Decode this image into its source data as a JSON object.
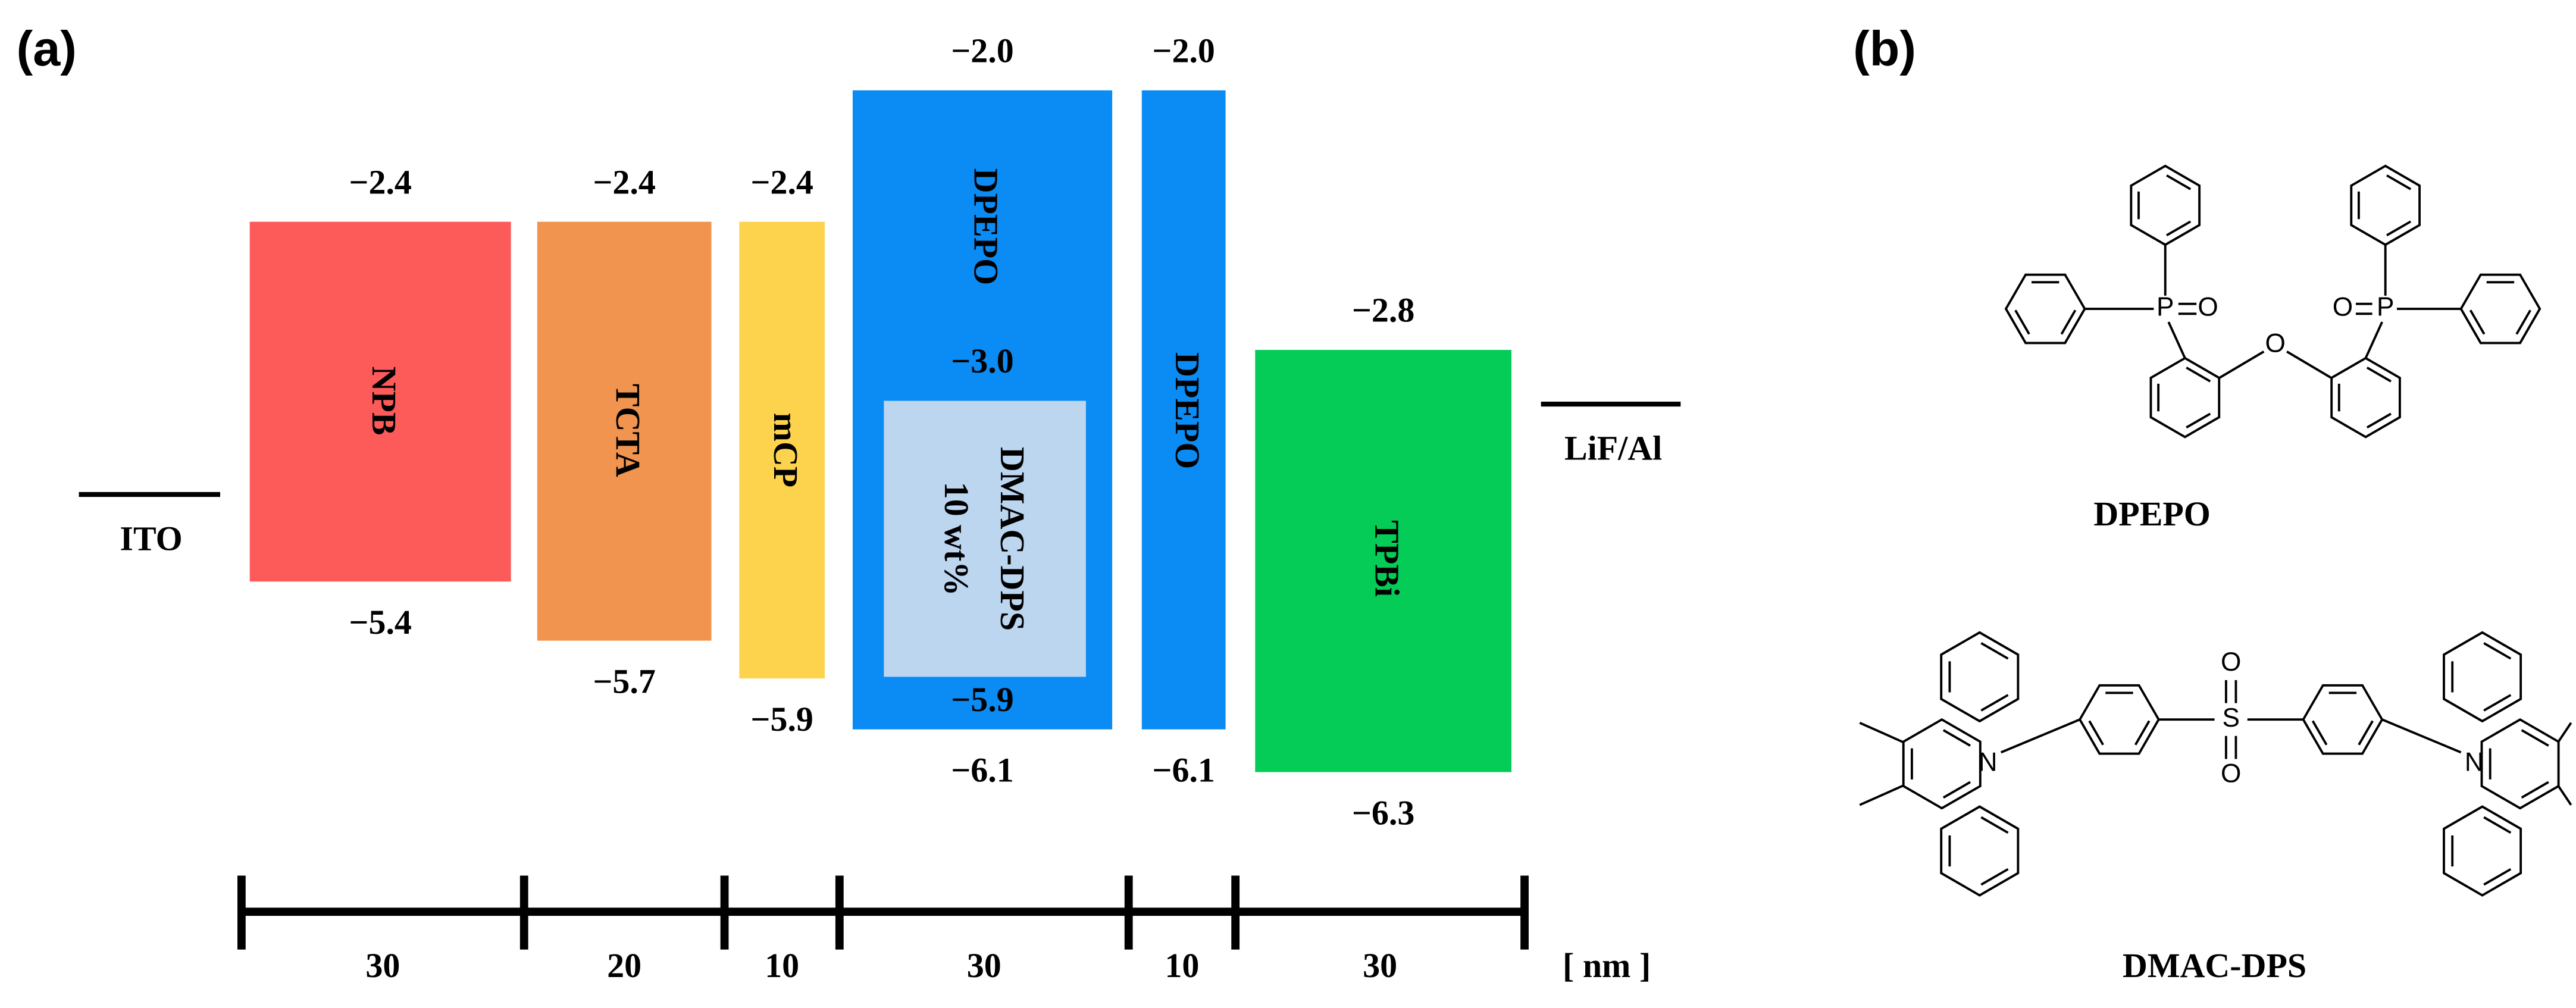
{
  "panel_labels": [
    "(a)",
    "(b)"
  ],
  "electrodes": [
    {
      "label": "ITO"
    },
    {
      "label": "LiF/Al"
    }
  ],
  "layers": [
    {
      "label": "NPB",
      "lumo": "−2.4",
      "homo": "−5.4"
    },
    {
      "label": "TCTA",
      "lumo": "−2.4",
      "homo": "−5.7"
    },
    {
      "label": "mCP",
      "lumo": "−2.4",
      "homo": "−5.9"
    },
    {
      "label": "DPEPO",
      "lumo": "−2.0",
      "homo": "−6.1"
    },
    {
      "label": "DPEPO",
      "lumo": "−2.0",
      "homo": "−6.1"
    },
    {
      "label": "TPBi",
      "lumo": "−2.8",
      "homo": "−6.3"
    }
  ],
  "dopant": {
    "label": "DMAC-DPS",
    "concentration": "10 wt%",
    "lumo": "−3.0",
    "homo": "−5.9"
  },
  "thickness": {
    "values": [
      30,
      20,
      10,
      30,
      10,
      30
    ],
    "unit": "[ nm ]"
  },
  "structures": [
    {
      "name": "DPEPO",
      "atoms": [
        "P",
        "O",
        "O",
        "O",
        "P"
      ]
    },
    {
      "name": "DMAC-DPS",
      "atoms": [
        "N",
        "O",
        "S",
        "O",
        "N"
      ]
    }
  ]
}
